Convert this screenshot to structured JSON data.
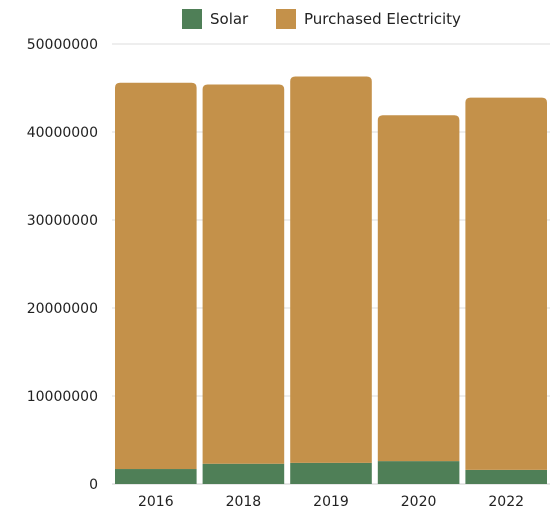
{
  "chart_data": {
    "type": "bar",
    "stacked": true,
    "categories": [
      "2016",
      "2018",
      "2019",
      "2020",
      "2022"
    ],
    "series": [
      {
        "name": "Solar",
        "color": "#4f7f57",
        "values": [
          1700000,
          2300000,
          2400000,
          2600000,
          1600000
        ]
      },
      {
        "name": "Purchased Electricity",
        "color": "#c4914a",
        "values": [
          43900000,
          43100000,
          43900000,
          39300000,
          42300000
        ]
      }
    ],
    "ylim": [
      0,
      50000000
    ],
    "yticks": [
      0,
      10000000,
      20000000,
      30000000,
      40000000,
      50000000
    ],
    "ytick_labels": [
      "0",
      "10000000",
      "20000000",
      "30000000",
      "40000000",
      "50000000"
    ],
    "grid": "horizontal",
    "legend_position": "top-center",
    "title": "",
    "xlabel": "",
    "ylabel": ""
  }
}
